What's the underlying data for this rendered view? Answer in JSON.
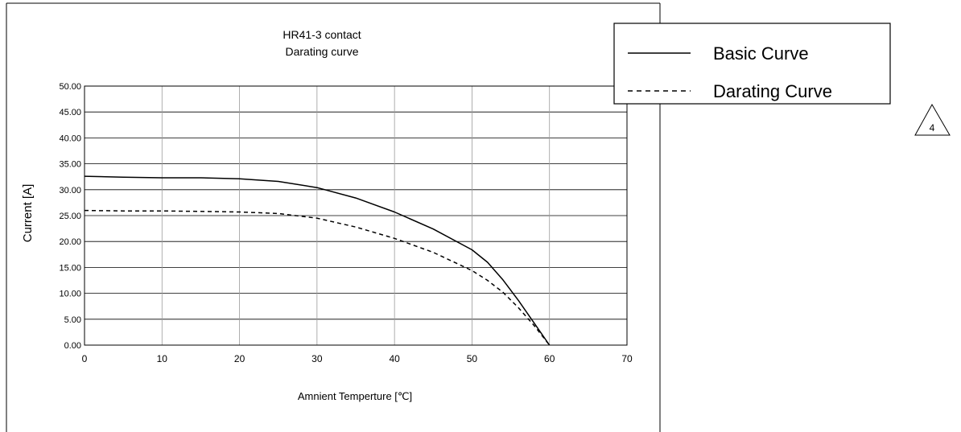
{
  "chart_data": {
    "type": "line",
    "title": "HR41-3  contact",
    "subtitle": "Darating curve",
    "xlabel": "Amnient Temperture [℃]",
    "ylabel": "Current [A]",
    "xlim": [
      0,
      70
    ],
    "ylim": [
      0,
      50
    ],
    "xticks": [
      "0",
      "10",
      "20",
      "30",
      "40",
      "50",
      "60",
      "70"
    ],
    "yticks": [
      "0.00",
      "5.00",
      "10.00",
      "15.00",
      "20.00",
      "25.00",
      "30.00",
      "35.00",
      "40.00",
      "45.00",
      "50.00"
    ],
    "grid": true,
    "legend_position": "top-right",
    "series": [
      {
        "name": "Basic Curve",
        "style": "solid",
        "x": [
          0,
          5,
          10,
          15,
          20,
          25,
          30,
          35,
          40,
          45,
          50,
          52,
          54,
          56,
          58,
          60
        ],
        "y": [
          32.6,
          32.4,
          32.3,
          32.3,
          32.1,
          31.6,
          30.4,
          28.4,
          25.7,
          22.4,
          18.4,
          16.0,
          12.6,
          8.6,
          4.3,
          0
        ]
      },
      {
        "name": "Darating Curve",
        "style": "dashed",
        "x": [
          0,
          5,
          10,
          15,
          20,
          25,
          30,
          35,
          40,
          45,
          50,
          52,
          54,
          56,
          58,
          60
        ],
        "y": [
          26.0,
          25.9,
          25.9,
          25.8,
          25.7,
          25.4,
          24.5,
          22.8,
          20.6,
          17.9,
          14.4,
          12.5,
          10.2,
          7.2,
          3.8,
          0
        ]
      }
    ]
  },
  "revision_mark": "4"
}
